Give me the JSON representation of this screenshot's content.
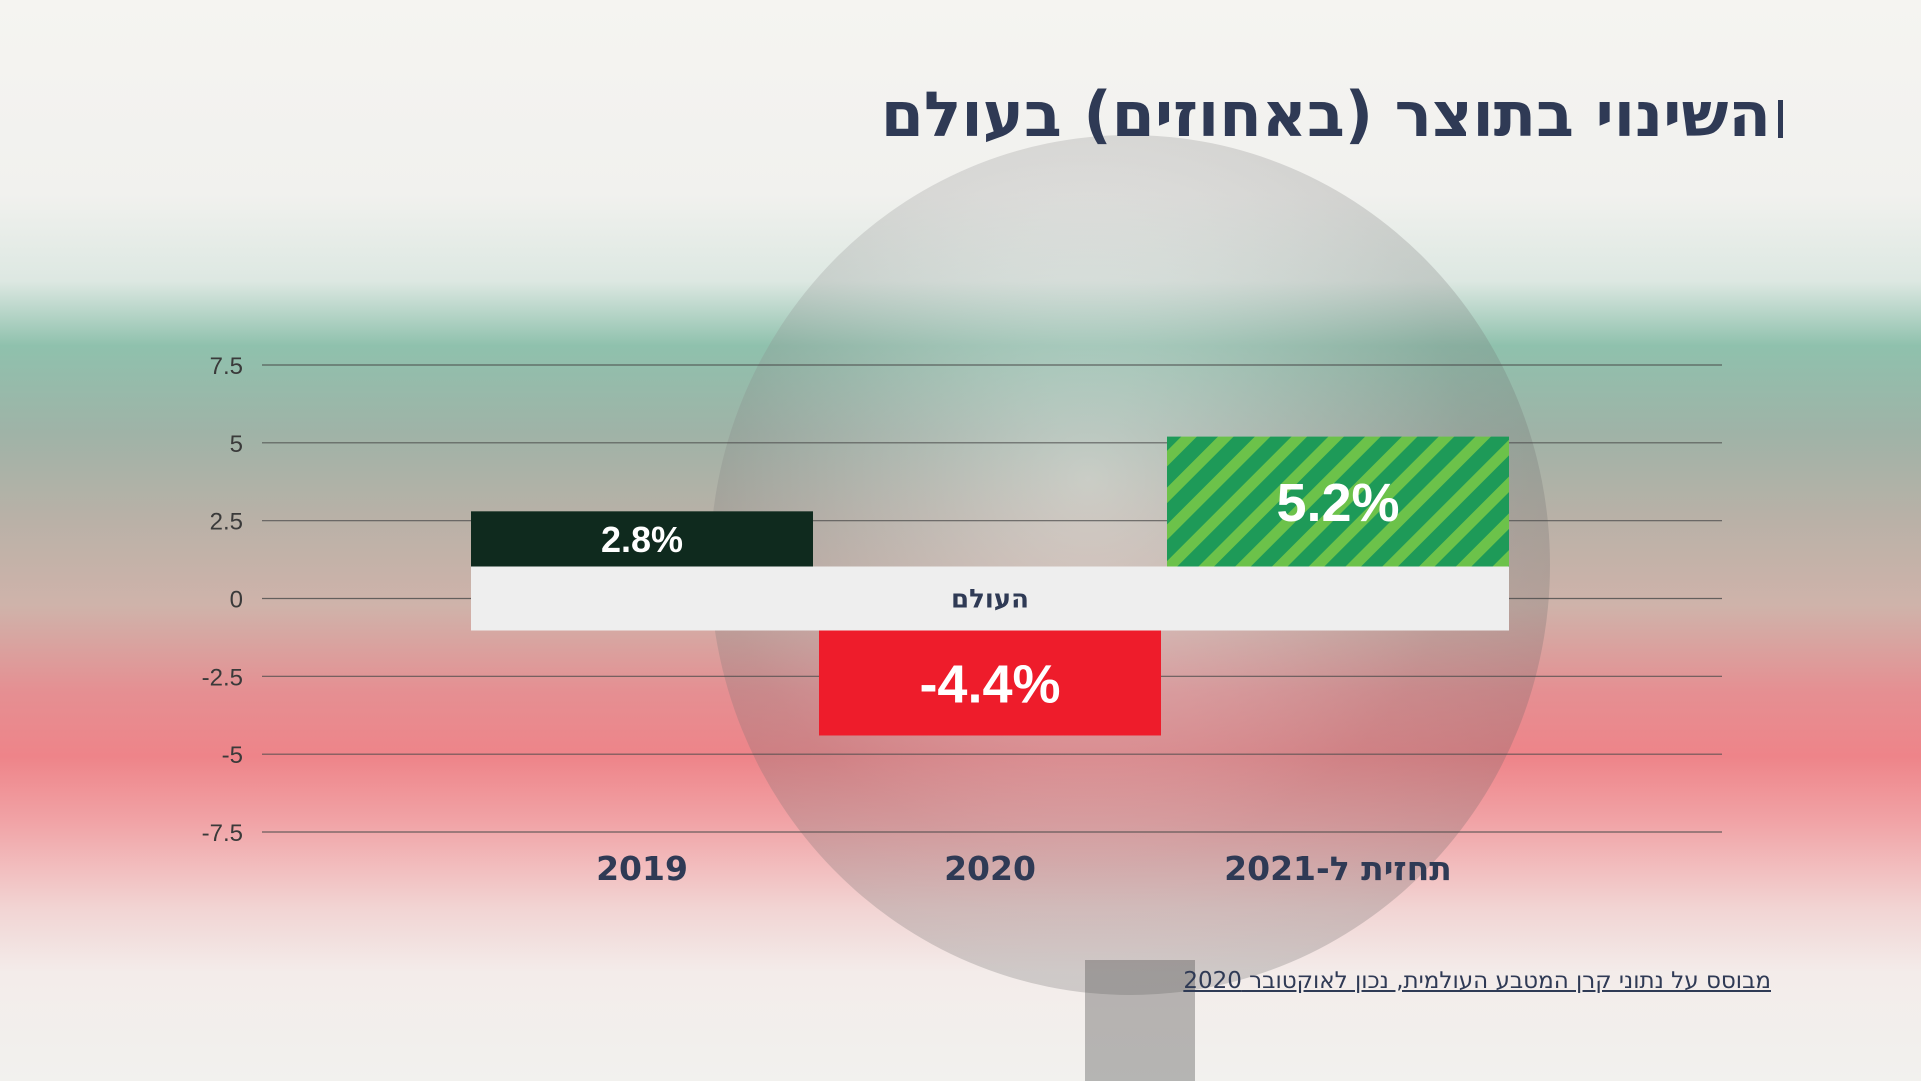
{
  "title": "השינוי בתוצר (באחוזים) בעולם",
  "footnote": "מבוסס על נתוני קרן המטבע העולמית, נכון לאוקטובר 2020",
  "chart_data": {
    "type": "bar",
    "title": "השינוי בתוצר (באחוזים) בעולם",
    "categories": [
      "2019",
      "2020",
      "תחזית ל-2021"
    ],
    "values": [
      2.8,
      -4.4,
      5.2
    ],
    "value_labels": [
      "2.8%",
      "-4.4%",
      "5.2%"
    ],
    "series": [
      {
        "name": "העולם",
        "values": [
          2.8,
          -4.4,
          5.2
        ]
      }
    ],
    "xlabel": "",
    "ylabel": "",
    "ylim": [
      -7.5,
      7.5
    ],
    "yticks": [
      7.5,
      5,
      2.5,
      0,
      -2.5,
      -5,
      -7.5
    ],
    "ytick_labels": [
      "7.5",
      "5",
      "2.5",
      "0",
      "-2.5",
      "-5",
      "-7.5"
    ],
    "grid": true,
    "zero_band_label": "העולם",
    "colors": {
      "2019": "#0f2a1e",
      "2020": "#ee1c2b",
      "2021_base": "#1e9a58",
      "2021_stripe": "#6cc24a",
      "grid": "#4a4a4a",
      "band": "#eeeeee"
    }
  }
}
